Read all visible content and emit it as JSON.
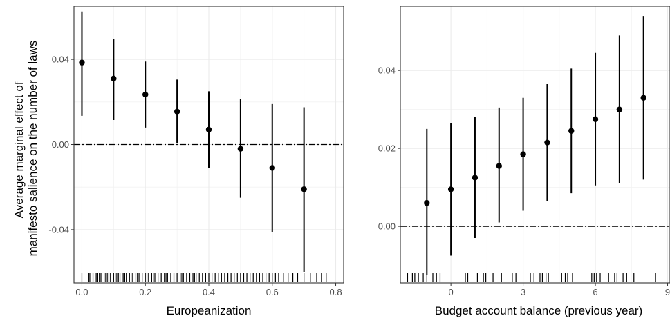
{
  "ylabel_lines": [
    "Average marginal effect of",
    "manifesto salience on the number of laws"
  ],
  "chart_data": [
    {
      "type": "scatter",
      "panel": "left",
      "xlabel": "Europeanization",
      "xlim": [
        -0.025,
        0.825
      ],
      "ylim": [
        -0.065,
        0.065
      ],
      "xticks": [
        0.0,
        0.2,
        0.4,
        0.6,
        0.8
      ],
      "xtick_labels": [
        "0.0",
        "0.2",
        "0.4",
        "0.6",
        "0.8"
      ],
      "yticks": [
        -0.04,
        0.0,
        0.04
      ],
      "ytick_labels": [
        "-0.04",
        "0.00",
        "0.04"
      ],
      "reference_line": 0,
      "grid": true,
      "points": [
        {
          "x": 0.0,
          "y": 0.0385,
          "lower": 0.0135,
          "upper": 0.0625
        },
        {
          "x": 0.1,
          "y": 0.031,
          "lower": 0.0115,
          "upper": 0.0495
        },
        {
          "x": 0.2,
          "y": 0.0235,
          "lower": 0.008,
          "upper": 0.039
        },
        {
          "x": 0.3,
          "y": 0.0155,
          "lower": 0.0005,
          "upper": 0.0305
        },
        {
          "x": 0.4,
          "y": 0.007,
          "lower": -0.011,
          "upper": 0.025
        },
        {
          "x": 0.5,
          "y": -0.002,
          "lower": -0.025,
          "upper": 0.0215
        },
        {
          "x": 0.6,
          "y": -0.011,
          "lower": -0.041,
          "upper": 0.019
        },
        {
          "x": 0.7,
          "y": -0.021,
          "lower": -0.06,
          "upper": 0.0175
        }
      ],
      "rug": [
        0.0,
        0.02,
        0.025,
        0.035,
        0.045,
        0.05,
        0.055,
        0.06,
        0.07,
        0.075,
        0.08,
        0.085,
        0.09,
        0.1,
        0.105,
        0.11,
        0.115,
        0.12,
        0.13,
        0.135,
        0.14,
        0.15,
        0.155,
        0.16,
        0.17,
        0.175,
        0.18,
        0.19,
        0.2,
        0.205,
        0.21,
        0.22,
        0.225,
        0.23,
        0.24,
        0.25,
        0.26,
        0.265,
        0.27,
        0.28,
        0.29,
        0.3,
        0.31,
        0.315,
        0.32,
        0.33,
        0.34,
        0.35,
        0.355,
        0.36,
        0.37,
        0.38,
        0.39,
        0.4,
        0.41,
        0.42,
        0.43,
        0.44,
        0.45,
        0.46,
        0.47,
        0.48,
        0.49,
        0.5,
        0.51,
        0.52,
        0.53,
        0.54,
        0.55,
        0.56,
        0.57,
        0.58,
        0.59,
        0.6,
        0.61,
        0.62,
        0.635,
        0.65,
        0.665,
        0.68,
        0.7,
        0.72,
        0.74,
        0.755,
        0.77
      ]
    },
    {
      "type": "scatter",
      "panel": "right",
      "xlabel": "Budget account balance (previous year)",
      "xlim": [
        -2.1,
        9.1
      ],
      "ylim": [
        -0.0145,
        0.0565
      ],
      "xticks": [
        0,
        3,
        6,
        9
      ],
      "xtick_labels": [
        "0",
        "3",
        "6",
        "9"
      ],
      "yticks": [
        0.0,
        0.02,
        0.04
      ],
      "ytick_labels": [
        "0.00",
        "0.02",
        "0.04"
      ],
      "reference_line": 0,
      "grid": true,
      "points": [
        {
          "x": -1,
          "y": 0.006,
          "lower": -0.0125,
          "upper": 0.025
        },
        {
          "x": 0,
          "y": 0.0095,
          "lower": -0.0075,
          "upper": 0.0265
        },
        {
          "x": 1,
          "y": 0.0125,
          "lower": -0.003,
          "upper": 0.028
        },
        {
          "x": 2,
          "y": 0.0155,
          "lower": 0.001,
          "upper": 0.0305
        },
        {
          "x": 3,
          "y": 0.0185,
          "lower": 0.004,
          "upper": 0.033
        },
        {
          "x": 4,
          "y": 0.0215,
          "lower": 0.0065,
          "upper": 0.0365
        },
        {
          "x": 5,
          "y": 0.0245,
          "lower": 0.0085,
          "upper": 0.0405
        },
        {
          "x": 6,
          "y": 0.0275,
          "lower": 0.0105,
          "upper": 0.0445
        },
        {
          "x": 7,
          "y": 0.03,
          "lower": 0.011,
          "upper": 0.049
        },
        {
          "x": 8,
          "y": 0.033,
          "lower": 0.012,
          "upper": 0.054
        }
      ],
      "rug": [
        -1.8,
        -1.6,
        -1.5,
        -1.35,
        -1.15,
        -1.0,
        -0.75,
        -0.6,
        -0.45,
        0.6,
        0.7,
        1.1,
        1.35,
        1.45,
        1.75,
        2.1,
        2.55,
        2.7,
        3.3,
        3.45,
        3.7,
        3.8,
        3.95,
        4.05,
        4.6,
        4.75,
        4.85,
        5.05,
        5.85,
        5.95,
        6.05,
        6.2,
        6.55,
        6.8,
        6.9,
        7.15,
        7.3,
        7.6,
        8.5
      ]
    }
  ]
}
